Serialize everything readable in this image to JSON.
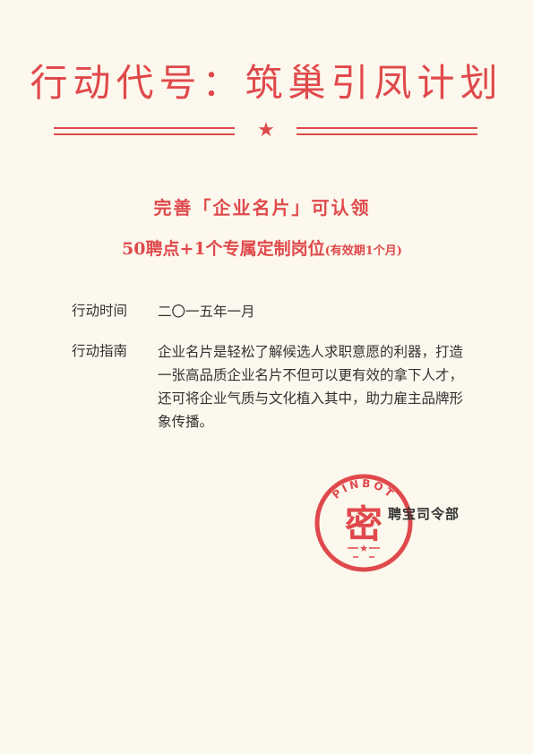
{
  "header": {
    "title": "行动代号：筑巢引凤计划",
    "star_icon": "star-icon",
    "accent_color": "#e0494c"
  },
  "offer": {
    "line1": "完善「企业名片」可认领",
    "line2_main": "50聘点+1个专属定制岗位",
    "line2_note": "(有效期1个月)"
  },
  "details": {
    "time_label": "行动时间",
    "time_value": "二〇一五年一月",
    "guide_label": "行动指南",
    "guide_value": "企业名片是轻松了解候选人求职意愿的利器，打造一张高品质企业名片不但可以更有效的拿下人才，还可将企业气质与文化植入其中，助力雇主品牌形象传播。"
  },
  "stamp": {
    "ring_text": "PINBOT",
    "center_char": "密",
    "icon": "seal-stamp"
  },
  "signer": "聘宝司令部"
}
